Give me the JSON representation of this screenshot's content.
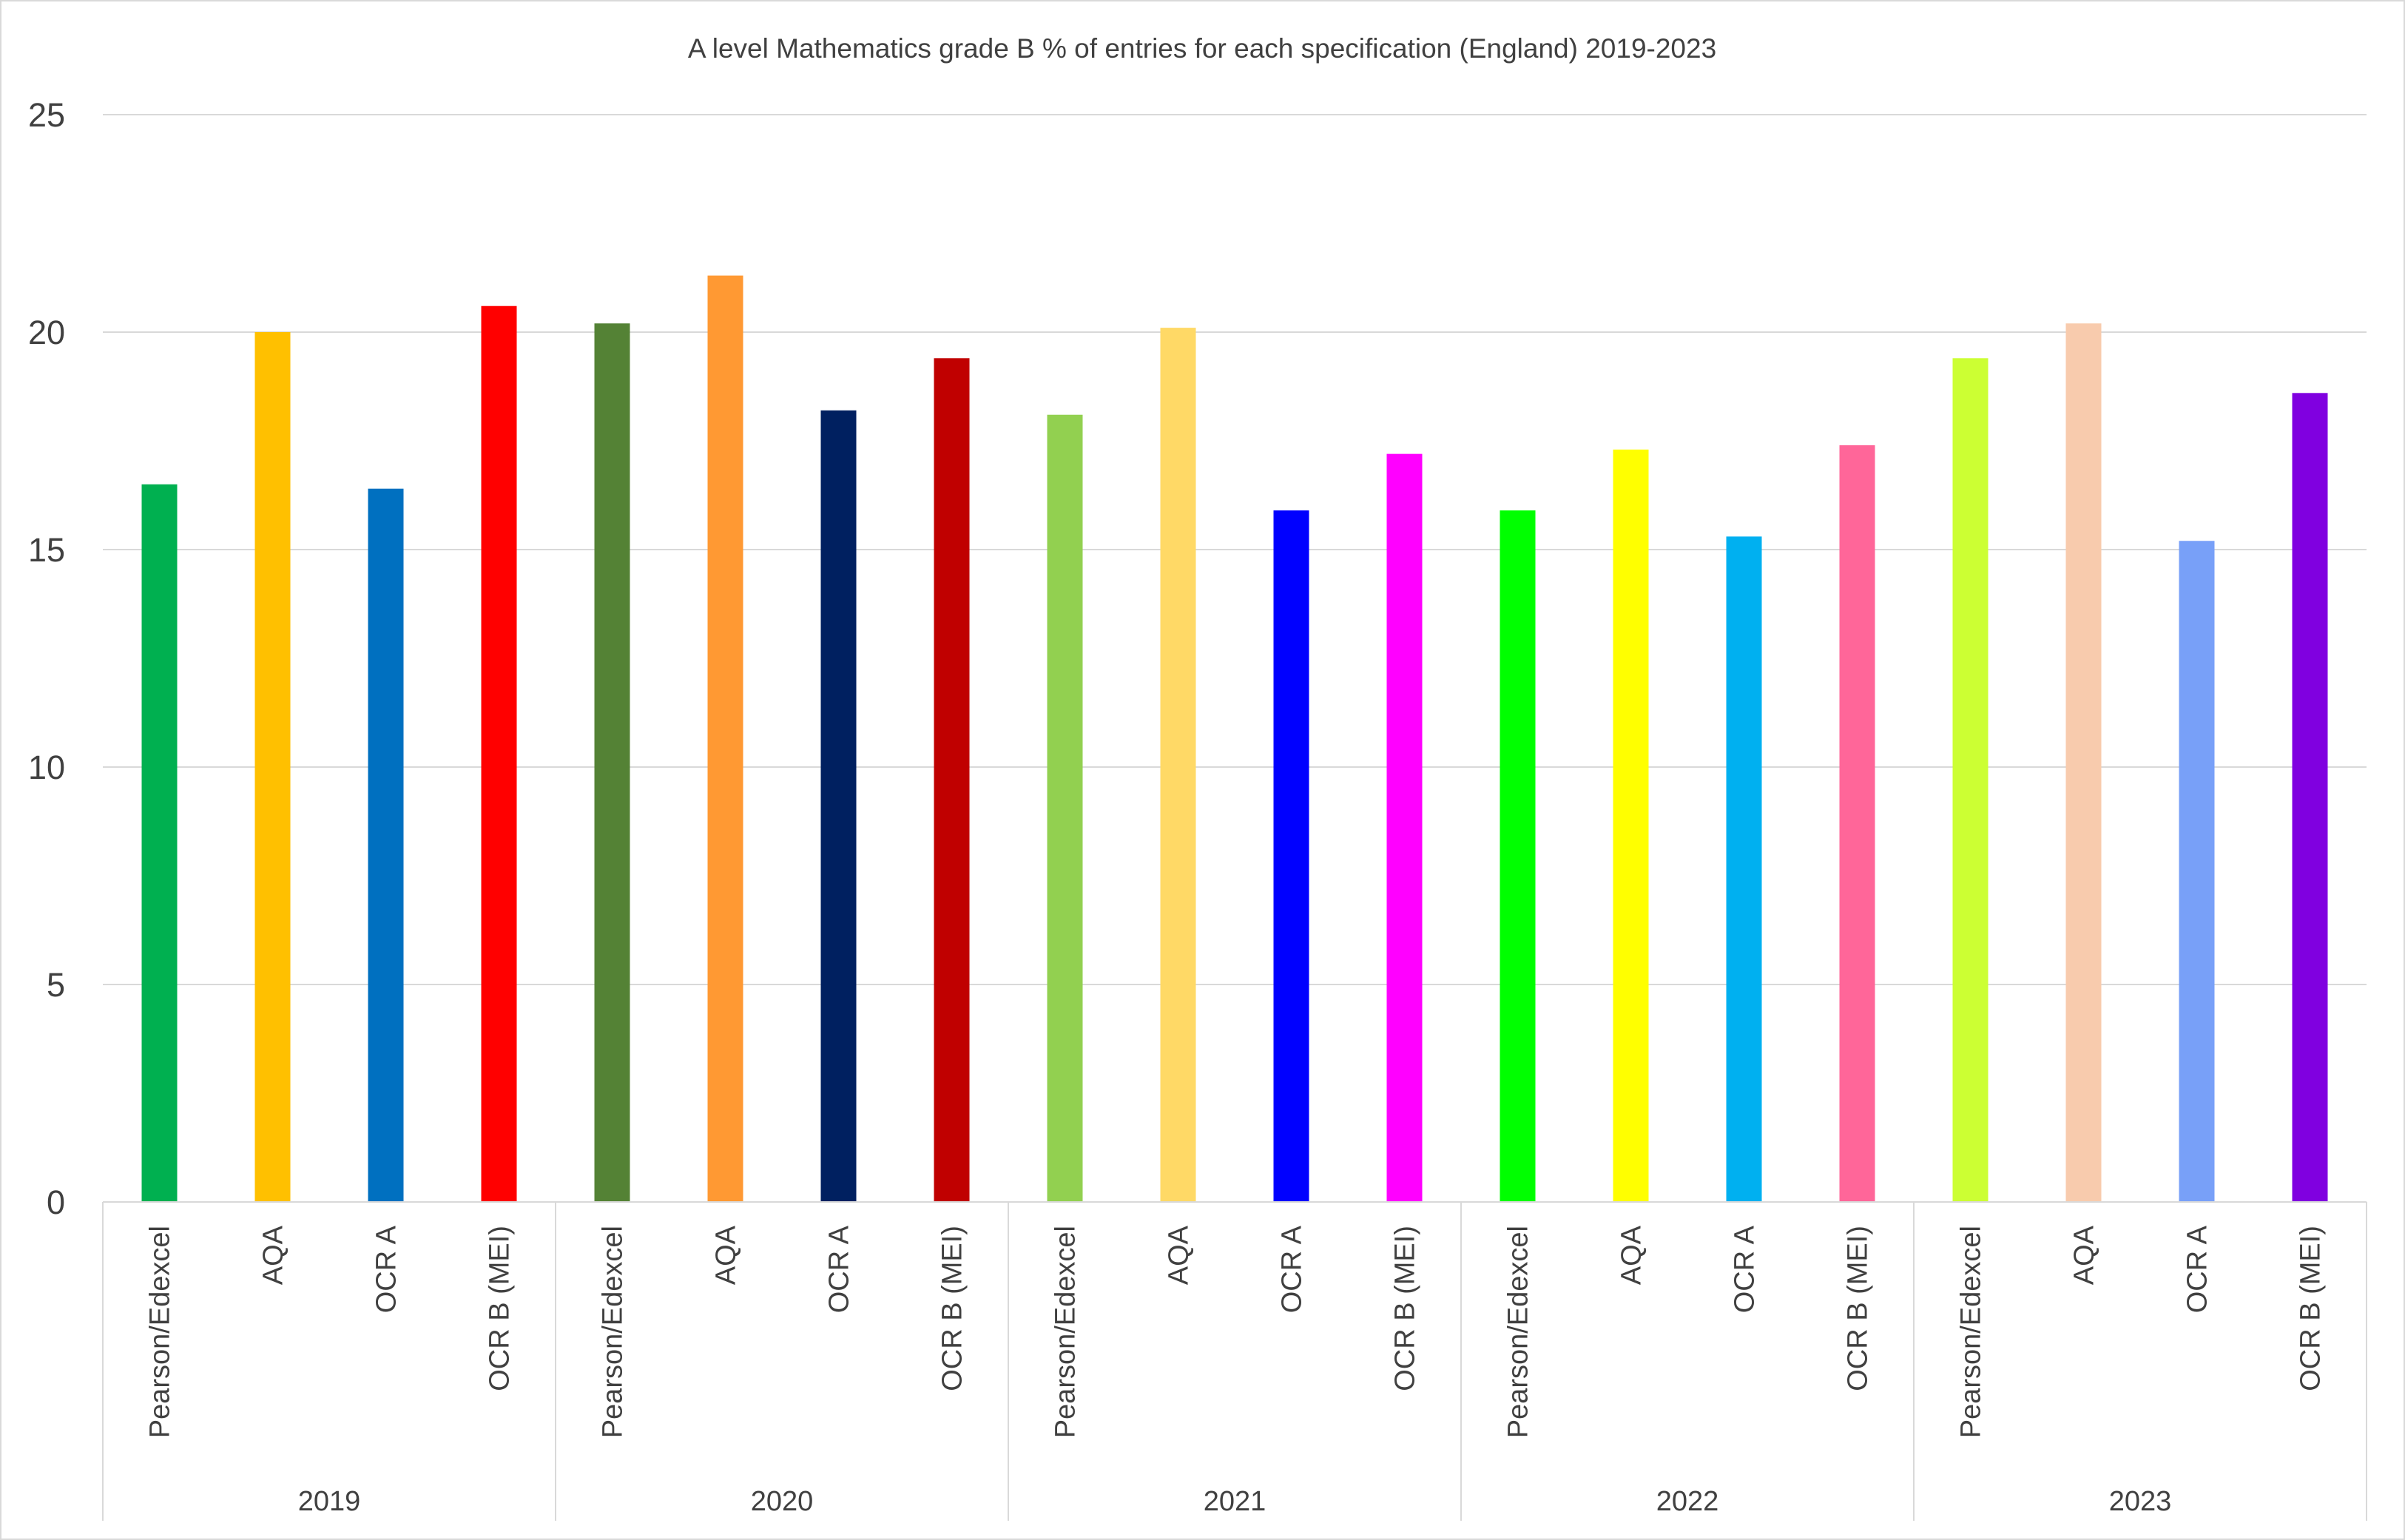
{
  "chart_data": {
    "type": "bar",
    "title": "A level Mathematics grade B % of entries for each specification (England) 2019-2023",
    "xlabel": "",
    "ylabel": "",
    "ylim": [
      0,
      25
    ],
    "yticks": [
      0,
      5,
      10,
      15,
      20,
      25
    ],
    "grid": true,
    "legend": "none",
    "groups": [
      {
        "label": "2019",
        "bars": [
          {
            "label": "Pearson/Edexcel",
            "value": 16.5,
            "color": "#00B050"
          },
          {
            "label": "AQA",
            "value": 20.0,
            "color": "#FFC000"
          },
          {
            "label": "OCR A",
            "value": 16.4,
            "color": "#0070C0"
          },
          {
            "label": "OCR B (MEI)",
            "value": 20.6,
            "color": "#FF0000"
          }
        ]
      },
      {
        "label": "2020",
        "bars": [
          {
            "label": "Pearson/Edexcel",
            "value": 20.2,
            "color": "#548235"
          },
          {
            "label": "AQA",
            "value": 21.3,
            "color": "#FF9933"
          },
          {
            "label": "OCR A",
            "value": 18.2,
            "color": "#002060"
          },
          {
            "label": "OCR B (MEI)",
            "value": 19.4,
            "color": "#C00000"
          }
        ]
      },
      {
        "label": "2021",
        "bars": [
          {
            "label": "Pearson/Edexcel",
            "value": 18.1,
            "color": "#92D050"
          },
          {
            "label": "AQA",
            "value": 20.1,
            "color": "#FFD966"
          },
          {
            "label": "OCR A",
            "value": 15.9,
            "color": "#0000FF"
          },
          {
            "label": "OCR B (MEI)",
            "value": 17.2,
            "color": "#FF00FF"
          }
        ]
      },
      {
        "label": "2022",
        "bars": [
          {
            "label": "Pearson/Edexcel",
            "value": 15.9,
            "color": "#00FF00"
          },
          {
            "label": "AQA",
            "value": 17.3,
            "color": "#FFFF00"
          },
          {
            "label": "OCR A",
            "value": 15.3,
            "color": "#00B0F0"
          },
          {
            "label": "OCR B (MEI)",
            "value": 17.4,
            "color": "#FF6699"
          }
        ]
      },
      {
        "label": "2023",
        "bars": [
          {
            "label": "Pearson/Edexcel",
            "value": 19.4,
            "color": "#CCFF33"
          },
          {
            "label": "AQA",
            "value": 20.2,
            "color": "#F8CBAD"
          },
          {
            "label": "OCR A",
            "value": 15.2,
            "color": "#78A0F8"
          },
          {
            "label": "OCR B (MEI)",
            "value": 18.6,
            "color": "#8000E0"
          }
        ]
      }
    ]
  }
}
